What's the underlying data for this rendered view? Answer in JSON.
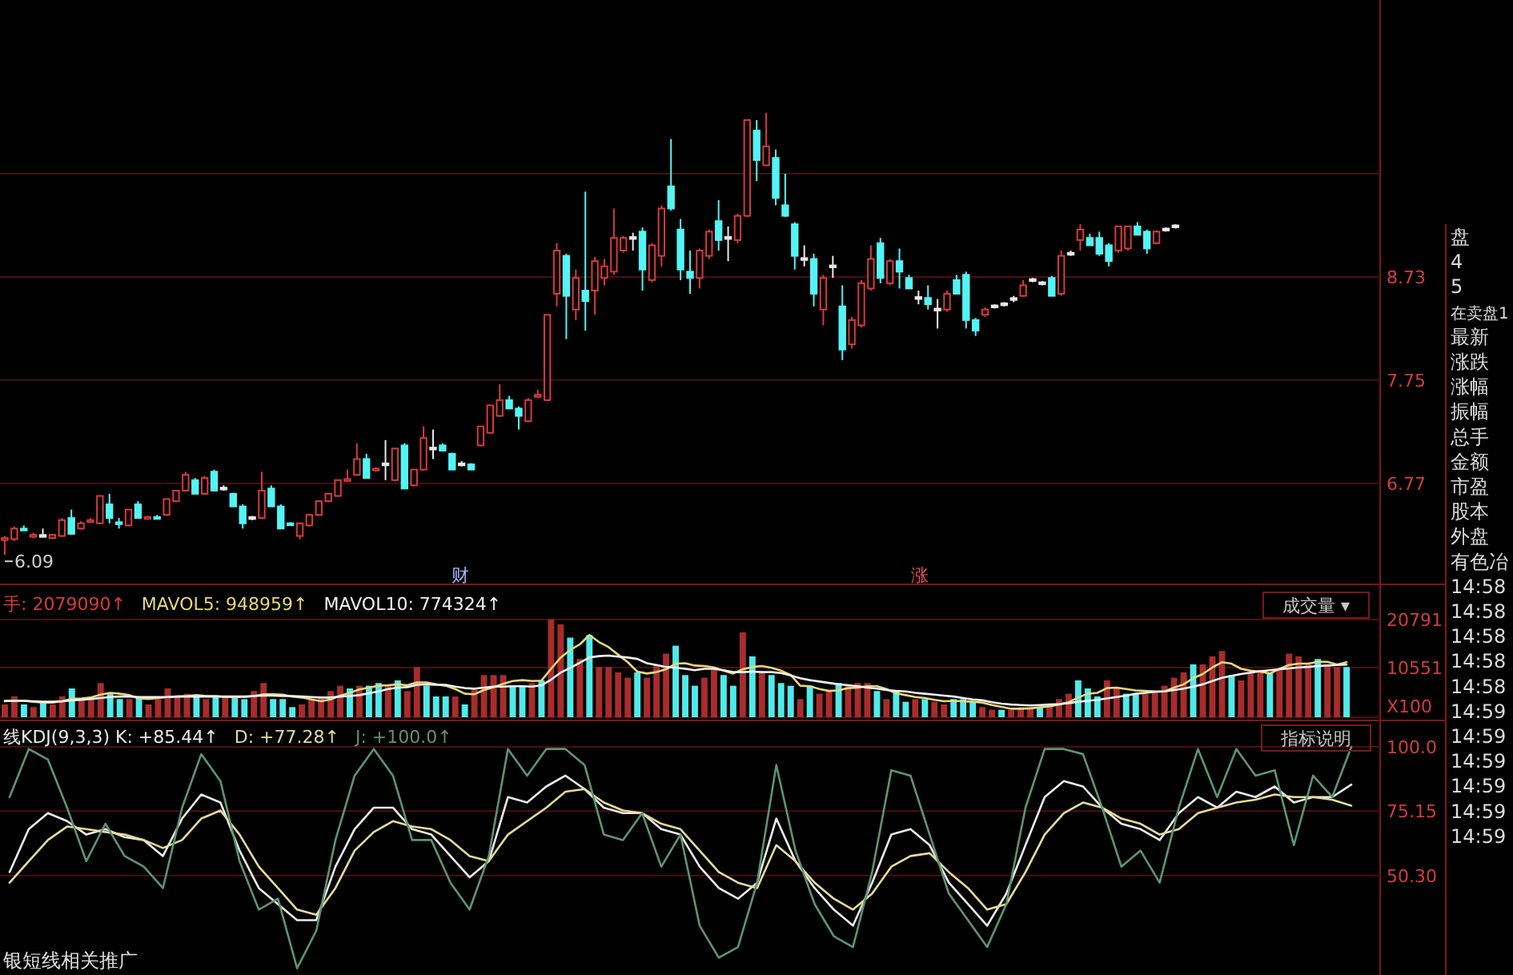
{
  "chart_data": [
    {
      "type": "candlestick",
      "categories": [
        null,
        null,
        null,
        null,
        null,
        null,
        null,
        null,
        null,
        null,
        null,
        null,
        null,
        null,
        null,
        null,
        null,
        null,
        null,
        null,
        null,
        null,
        null,
        null,
        null,
        null,
        null,
        null,
        null,
        null,
        null,
        null,
        null,
        null,
        null,
        null,
        null,
        null,
        null,
        null,
        null,
        null,
        null,
        null,
        null,
        null,
        null,
        null,
        null,
        null,
        null,
        null,
        null,
        null,
        null,
        null,
        null,
        null,
        null,
        null,
        null,
        null,
        null,
        null,
        null,
        null,
        null,
        null,
        null,
        null,
        null,
        null,
        null,
        null,
        null,
        null,
        null,
        null,
        null,
        null,
        null,
        null,
        null,
        null,
        null,
        null,
        null,
        null,
        null,
        null,
        null,
        null,
        null,
        null,
        null,
        null,
        null,
        null,
        null,
        null,
        null,
        null,
        null,
        null,
        null,
        null,
        null,
        null,
        null,
        null,
        null,
        null,
        null,
        null,
        null,
        null,
        null,
        null,
        null,
        null,
        null,
        null,
        null,
        null,
        null,
        null,
        null,
        null,
        null,
        null,
        null,
        null,
        null,
        null,
        null,
        null,
        null,
        null,
        null,
        null,
        null,
        null,
        null,
        null,
        null
      ],
      "ohlc": [
        [
          6.24,
          6.27,
          6.09,
          6.25
        ],
        [
          6.24,
          6.36,
          6.22,
          6.34
        ],
        [
          6.34,
          6.37,
          6.32,
          6.33
        ],
        [
          6.27,
          6.3,
          6.25,
          6.28
        ],
        [
          6.27,
          6.34,
          6.26,
          6.27
        ],
        [
          6.25,
          6.29,
          6.24,
          6.28
        ],
        [
          6.27,
          6.44,
          6.26,
          6.42
        ],
        [
          6.44,
          6.52,
          6.28,
          6.29
        ],
        [
          6.34,
          6.41,
          6.33,
          6.39
        ],
        [
          6.41,
          6.44,
          6.4,
          6.42
        ],
        [
          6.39,
          6.65,
          6.38,
          6.65
        ],
        [
          6.57,
          6.67,
          6.39,
          6.44
        ],
        [
          6.4,
          6.44,
          6.34,
          6.39
        ],
        [
          6.37,
          6.52,
          6.36,
          6.52
        ],
        [
          6.57,
          6.6,
          6.44,
          6.44
        ],
        [
          6.44,
          6.46,
          6.43,
          6.45
        ],
        [
          6.45,
          6.47,
          6.43,
          6.44
        ],
        [
          6.47,
          6.62,
          6.46,
          6.62
        ],
        [
          6.6,
          6.7,
          6.59,
          6.7
        ],
        [
          6.7,
          6.88,
          6.69,
          6.85
        ],
        [
          6.8,
          6.82,
          6.67,
          6.67
        ],
        [
          6.67,
          6.84,
          6.66,
          6.82
        ],
        [
          6.88,
          6.9,
          6.7,
          6.7
        ],
        [
          6.72,
          6.75,
          6.7,
          6.72
        ],
        [
          6.67,
          6.68,
          6.55,
          6.55
        ],
        [
          6.55,
          6.57,
          6.34,
          6.39
        ],
        [
          6.44,
          6.46,
          6.42,
          6.44
        ],
        [
          6.44,
          6.88,
          6.43,
          6.7
        ],
        [
          6.72,
          6.75,
          6.55,
          6.55
        ],
        [
          6.55,
          6.57,
          6.34,
          6.34
        ],
        [
          6.39,
          6.4,
          6.37,
          6.38
        ],
        [
          6.27,
          6.39,
          6.24,
          6.39
        ],
        [
          6.37,
          6.48,
          6.36,
          6.47
        ],
        [
          6.47,
          6.6,
          6.46,
          6.6
        ],
        [
          6.6,
          6.67,
          6.59,
          6.67
        ],
        [
          6.65,
          6.8,
          6.64,
          6.8
        ],
        [
          6.8,
          6.9,
          6.79,
          6.81
        ],
        [
          6.85,
          7.15,
          6.84,
          7.0
        ],
        [
          7.0,
          7.05,
          6.82,
          6.82
        ],
        [
          6.9,
          6.92,
          6.88,
          6.91
        ],
        [
          6.95,
          7.18,
          6.8,
          6.95
        ],
        [
          6.8,
          7.1,
          6.79,
          7.1
        ],
        [
          7.13,
          7.15,
          6.72,
          6.72
        ],
        [
          6.75,
          6.9,
          6.74,
          6.9
        ],
        [
          6.9,
          7.31,
          6.89,
          7.2
        ],
        [
          7.1,
          7.28,
          7.0,
          7.1
        ],
        [
          7.13,
          7.15,
          7.08,
          7.08
        ],
        [
          7.05,
          7.06,
          6.9,
          6.9
        ],
        [
          6.95,
          6.98,
          6.93,
          6.95
        ],
        [
          6.95,
          6.96,
          6.9,
          6.9
        ],
        [
          7.13,
          7.31,
          7.12,
          7.31
        ],
        [
          7.25,
          7.51,
          7.24,
          7.51
        ],
        [
          7.41,
          7.71,
          7.4,
          7.56
        ],
        [
          7.56,
          7.6,
          7.48,
          7.48
        ],
        [
          7.48,
          7.5,
          7.28,
          7.41
        ],
        [
          7.36,
          7.58,
          7.35,
          7.56
        ],
        [
          7.6,
          7.66,
          7.58,
          7.61
        ],
        [
          7.56,
          8.37,
          7.55,
          8.37
        ],
        [
          8.57,
          9.05,
          8.45,
          8.98
        ],
        [
          8.93,
          8.95,
          8.14,
          8.55
        ],
        [
          8.42,
          8.8,
          8.32,
          8.72
        ],
        [
          8.6,
          9.54,
          8.22,
          8.5
        ],
        [
          8.6,
          8.92,
          8.37,
          8.88
        ],
        [
          8.72,
          8.9,
          8.65,
          8.83
        ],
        [
          8.78,
          9.38,
          8.75,
          9.1
        ],
        [
          8.98,
          9.12,
          8.96,
          9.1
        ],
        [
          9.1,
          9.15,
          8.98,
          9.1
        ],
        [
          9.16,
          9.2,
          8.6,
          8.8
        ],
        [
          8.7,
          9.05,
          8.68,
          9.03
        ],
        [
          8.93,
          9.41,
          8.83,
          9.38
        ],
        [
          9.59,
          10.04,
          9.36,
          9.38
        ],
        [
          9.18,
          9.28,
          8.7,
          8.8
        ],
        [
          8.78,
          8.98,
          8.57,
          8.72
        ],
        [
          8.72,
          9.0,
          8.62,
          8.98
        ],
        [
          8.93,
          9.18,
          8.9,
          9.16
        ],
        [
          9.26,
          9.46,
          8.98,
          9.08
        ],
        [
          9.1,
          9.21,
          8.88,
          9.1
        ],
        [
          9.08,
          9.33,
          9.05,
          9.31
        ],
        [
          9.31,
          10.22,
          9.3,
          10.22
        ],
        [
          10.12,
          10.22,
          9.64,
          9.84
        ],
        [
          9.79,
          10.29,
          9.78,
          9.97
        ],
        [
          9.86,
          9.94,
          9.41,
          9.48
        ],
        [
          9.41,
          9.71,
          9.3,
          9.31
        ],
        [
          9.23,
          9.25,
          8.8,
          8.93
        ],
        [
          8.9,
          9.03,
          8.83,
          8.9
        ],
        [
          8.9,
          8.95,
          8.45,
          8.57
        ],
        [
          8.42,
          8.75,
          8.27,
          8.72
        ],
        [
          8.83,
          8.93,
          8.72,
          8.83
        ],
        [
          8.45,
          8.65,
          7.94,
          8.04
        ],
        [
          8.09,
          8.35,
          8.05,
          8.32
        ],
        [
          8.27,
          8.7,
          8.25,
          8.67
        ],
        [
          8.62,
          9.03,
          8.6,
          8.9
        ],
        [
          9.05,
          9.1,
          8.67,
          8.72
        ],
        [
          8.67,
          8.9,
          8.65,
          8.88
        ],
        [
          8.88,
          9.0,
          8.62,
          8.78
        ],
        [
          8.72,
          8.75,
          8.62,
          8.62
        ],
        [
          8.53,
          8.6,
          8.47,
          8.53
        ],
        [
          8.53,
          8.65,
          8.42,
          8.47
        ],
        [
          8.42,
          8.52,
          8.24,
          8.42
        ],
        [
          8.42,
          8.6,
          8.4,
          8.57
        ],
        [
          8.7,
          8.75,
          8.57,
          8.57
        ],
        [
          8.75,
          8.78,
          8.24,
          8.32
        ],
        [
          8.32,
          8.34,
          8.17,
          8.22
        ],
        [
          8.37,
          8.44,
          8.35,
          8.42
        ],
        [
          8.45,
          8.47,
          8.43,
          8.45
        ],
        [
          8.47,
          8.49,
          8.45,
          8.47
        ],
        [
          8.52,
          8.55,
          8.49,
          8.52
        ],
        [
          8.55,
          8.7,
          8.54,
          8.65
        ],
        [
          8.7,
          8.72,
          8.68,
          8.7
        ],
        [
          8.67,
          8.69,
          8.65,
          8.67
        ],
        [
          8.72,
          8.74,
          8.55,
          8.55
        ],
        [
          8.57,
          8.98,
          8.55,
          8.93
        ],
        [
          8.95,
          8.98,
          8.93,
          8.95
        ],
        [
          9.08,
          9.23,
          8.98,
          9.18
        ],
        [
          9.1,
          9.14,
          9.03,
          9.03
        ],
        [
          9.1,
          9.16,
          8.93,
          8.95
        ],
        [
          9.03,
          9.05,
          8.83,
          8.88
        ],
        [
          8.98,
          9.21,
          8.96,
          9.21
        ],
        [
          9.0,
          9.21,
          8.98,
          9.21
        ],
        [
          9.21,
          9.25,
          9.13,
          9.13
        ],
        [
          9.16,
          9.18,
          8.95,
          9.0
        ],
        [
          9.05,
          9.17,
          9.04,
          9.16
        ],
        [
          9.18,
          9.2,
          9.16,
          9.18
        ],
        [
          9.21,
          9.23,
          9.19,
          9.21
        ],
        null,
        null,
        null,
        null,
        null,
        null,
        null,
        null,
        null,
        null,
        null,
        null,
        null,
        null,
        null,
        null,
        null,
        null,
        null,
        null,
        null
      ],
      "colors": [
        "#d83a3a",
        "#d83a3a",
        "#54f4f4",
        "#d83a3a",
        "#e8e8e8",
        "#d83a3a",
        "#d83a3a",
        "#54f4f4",
        "#d83a3a",
        "#d83a3a",
        "#d83a3a",
        "#54f4f4",
        "#54f4f4",
        "#d83a3a",
        "#54f4f4",
        "#d83a3a",
        "#54f4f4",
        "#d83a3a",
        "#d83a3a",
        "#d83a3a",
        "#54f4f4",
        "#d83a3a",
        "#54f4f4",
        "#e8e8e8",
        "#54f4f4",
        "#54f4f4",
        "#e8e8e8",
        "#d83a3a",
        "#54f4f4",
        "#54f4f4",
        "#54f4f4",
        "#d83a3a",
        "#d83a3a",
        "#d83a3a",
        "#d83a3a",
        "#d83a3a",
        "#d83a3a",
        "#d83a3a",
        "#54f4f4",
        "#d83a3a",
        "#e8e8e8",
        "#d83a3a",
        "#54f4f4",
        "#d83a3a",
        "#d83a3a",
        "#e8e8e8",
        "#54f4f4",
        "#54f4f4",
        "#e8e8e8",
        "#54f4f4",
        "#d83a3a",
        "#d83a3a",
        "#d83a3a",
        "#54f4f4",
        "#54f4f4",
        "#d83a3a",
        "#d83a3a",
        "#d83a3a",
        "#d83a3a",
        "#54f4f4",
        "#d83a3a",
        "#54f4f4",
        "#d83a3a",
        "#d83a3a",
        "#d83a3a",
        "#d83a3a",
        "#e8e8e8",
        "#54f4f4",
        "#d83a3a",
        "#d83a3a",
        "#54f4f4",
        "#54f4f4",
        "#54f4f4",
        "#d83a3a",
        "#d83a3a",
        "#54f4f4",
        "#e8e8e8",
        "#d83a3a",
        "#d83a3a",
        "#54f4f4",
        "#d83a3a",
        "#54f4f4",
        "#54f4f4",
        "#54f4f4",
        "#e8e8e8",
        "#54f4f4",
        "#d83a3a",
        "#e8e8e8",
        "#54f4f4",
        "#d83a3a",
        "#d83a3a",
        "#d83a3a",
        "#54f4f4",
        "#d83a3a",
        "#54f4f4",
        "#54f4f4",
        "#e8e8e8",
        "#54f4f4",
        "#e8e8e8",
        "#d83a3a",
        "#54f4f4",
        "#54f4f4",
        "#54f4f4",
        "#d83a3a",
        "#e8e8e8",
        "#e8e8e8",
        "#e8e8e8",
        "#d83a3a",
        "#e8e8e8",
        "#e8e8e8",
        "#54f4f4",
        "#d83a3a",
        "#e8e8e8",
        "#d83a3a",
        "#54f4f4",
        "#54f4f4",
        "#54f4f4",
        "#d83a3a",
        "#d83a3a",
        "#54f4f4",
        "#54f4f4",
        "#d83a3a",
        "#e8e8e8",
        "#e8e8e8",
        null,
        null,
        null,
        null,
        null,
        null,
        null,
        null,
        null,
        null,
        null,
        null,
        null,
        null,
        null,
        null,
        null,
        null,
        null,
        null,
        null
      ],
      "ylim": [
        5.81,
        11.36
      ],
      "yticks": [
        6.77,
        7.75,
        8.73,
        {
          "value": 9.71,
          "label": null
        }
      ],
      "grid": "y",
      "annotations": [
        "6.09",
        "财",
        "涨"
      ]
    },
    {
      "type": "bar",
      "categories": [
        null,
        null,
        null,
        null,
        null,
        null,
        null,
        null,
        null,
        null,
        null,
        null,
        null,
        null,
        null,
        null,
        null,
        null,
        null,
        null,
        null,
        null,
        null,
        null,
        null,
        null,
        null,
        null,
        null,
        null,
        null,
        null,
        null,
        null,
        null,
        null,
        null,
        null,
        null,
        null,
        null,
        null,
        null,
        null,
        null,
        null,
        null,
        null,
        null,
        null,
        null,
        null,
        null,
        null,
        null,
        null,
        null,
        null,
        null,
        null,
        null,
        null,
        null,
        null,
        null,
        null,
        null,
        null,
        null,
        null,
        null,
        null,
        null,
        null,
        null,
        null,
        null,
        null,
        null,
        null,
        null,
        null,
        null,
        null,
        null,
        null,
        null,
        null,
        null,
        null,
        null,
        null,
        null,
        null,
        null,
        null,
        null,
        null,
        null,
        null,
        null,
        null,
        null,
        null,
        null,
        null,
        null,
        null,
        null,
        null,
        null,
        null,
        null,
        null,
        null,
        null,
        null,
        null,
        null,
        null,
        null,
        null,
        null,
        null,
        null,
        null,
        null,
        null,
        null,
        null,
        null,
        null,
        null,
        null,
        null,
        null,
        null,
        null,
        null,
        null,
        null,
        null,
        null,
        null
      ],
      "series": [
        {
          "type": "bar",
          "color": "#d83a3a",
          "values": [
            2730,
            4430,
            2730,
            2160,
            3290,
            2730,
            4430,
            6130,
            3860,
            4430,
            7270,
            5000,
            3860,
            3860,
            4430,
            2730,
            3860,
            6130,
            4430,
            5000,
            4430,
            3860,
            4430,
            4430,
            4430,
            3860,
            5570,
            7270,
            3860,
            3860,
            2160,
            2730,
            3860,
            4430,
            5570,
            6700,
            6130,
            6700,
            6700,
            7270,
            6700,
            7840,
            5570,
            10680,
            6700,
            4430,
            4430,
            4430,
            2730,
            6130,
            8970,
            8970,
            8970,
            6700,
            6700,
            7270,
            7840,
            20790,
            19770,
            16930,
            12380,
            17490,
            10680,
            10680,
            9540,
            8410,
            9540,
            8410,
            11250,
            13520,
            15220,
            8970,
            6700,
            8410,
            10110,
            8970,
            6700,
            18060,
            12950,
            9540,
            8970,
            7270,
            6700,
            3860,
            6700,
            5000,
            5570,
            7270,
            6700,
            7270,
            7270,
            5570,
            3860,
            5570,
            3290,
            3860,
            3860,
            3290,
            2730,
            3860,
            3860,
            3290,
            2160,
            1590,
            1590,
            1590,
            2160,
            2160,
            2160,
            2730,
            3860,
            5000,
            7840,
            6130,
            4430,
            7840,
            6130,
            5000,
            5000,
            5000,
            5570,
            6700,
            8410,
            9540,
            11250,
            11250,
            12950,
            14090,
            8970,
            7840,
            9540,
            10110,
            9540,
            10110,
            13520,
            12950,
            11250,
            12380,
            11250,
            10680,
            10680,
            null,
            null,
            null
          ],
          "colors": [
            "#a82c2c",
            "#a82c2c",
            "#50eaea",
            "#a82c2c",
            "#50eaea",
            "#a82c2c",
            "#a82c2c",
            "#50eaea",
            "#a82c2c",
            "#a82c2c",
            "#a82c2c",
            "#50eaea",
            "#50eaea",
            "#a82c2c",
            "#50eaea",
            "#a82c2c",
            "#a82c2c",
            "#a82c2c",
            "#a82c2c",
            "#a82c2c",
            "#50eaea",
            "#a82c2c",
            "#50eaea",
            "#a82c2c",
            "#50eaea",
            "#50eaea",
            "#a82c2c",
            "#a82c2c",
            "#50eaea",
            "#50eaea",
            "#50eaea",
            "#a82c2c",
            "#a82c2c",
            "#a82c2c",
            "#a82c2c",
            "#a82c2c",
            "#50eaea",
            "#a82c2c",
            "#50eaea",
            "#50eaea",
            "#a82c2c",
            "#50eaea",
            "#a82c2c",
            "#a82c2c",
            "#50eaea",
            "#50eaea",
            "#50eaea",
            "#a82c2c",
            "#50eaea",
            "#a82c2c",
            "#a82c2c",
            "#a82c2c",
            "#a82c2c",
            "#50eaea",
            "#50eaea",
            "#a82c2c",
            "#50eaea",
            "#a82c2c",
            "#a82c2c",
            "#50eaea",
            "#a82c2c",
            "#50eaea",
            "#a82c2c",
            "#a82c2c",
            "#a82c2c",
            "#a82c2c",
            "#50eaea",
            "#a82c2c",
            "#a82c2c",
            "#a82c2c",
            "#50eaea",
            "#50eaea",
            "#50eaea",
            "#a82c2c",
            "#a82c2c",
            "#50eaea",
            "#50eaea",
            "#a82c2c",
            "#50eaea",
            "#a82c2c",
            "#50eaea",
            "#50eaea",
            "#50eaea",
            "#a82c2c",
            "#50eaea",
            "#a82c2c",
            "#a82c2c",
            "#50eaea",
            "#a82c2c",
            "#a82c2c",
            "#a82c2c",
            "#50eaea",
            "#a82c2c",
            "#50eaea",
            "#50eaea",
            "#a82c2c",
            "#50eaea",
            "#a82c2c",
            "#a82c2c",
            "#50eaea",
            "#50eaea",
            "#50eaea",
            "#a82c2c",
            "#a82c2c",
            "#50eaea",
            "#a82c2c",
            "#a82c2c",
            "#a82c2c",
            "#50eaea",
            "#a82c2c",
            "#a82c2c",
            "#a82c2c",
            "#50eaea",
            "#50eaea",
            "#50eaea",
            "#a82c2c",
            "#a82c2c",
            "#50eaea",
            "#50eaea",
            "#a82c2c",
            "#a82c2c",
            "#a82c2c",
            "#a82c2c",
            "#a82c2c",
            "#50eaea",
            "#a82c2c",
            "#a82c2c",
            "#a82c2c",
            "#50eaea",
            "#a82c2c",
            "#a82c2c",
            "#a82c2c",
            "#50eaea",
            "#a82c2c",
            "#a82c2c",
            "#a82c2c",
            "#a82c2c",
            "#50eaea",
            "#a82c2c",
            "#a82c2c",
            "#50eaea",
            "#a82c2c",
            "#a82c2c",
            "#a82c2c"
          ]
        },
        {
          "type": "line",
          "color": "#e6d87a",
          "values": [
            3400,
            3500,
            3500,
            3300,
            3100,
            3100,
            3400,
            3900,
            4000,
            4200,
            4800,
            5200,
            5000,
            4700,
            4000,
            3900,
            4100,
            4300,
            4400,
            4500,
            4700,
            4500,
            4500,
            4300,
            4300,
            4300,
            4500,
            4900,
            4900,
            4800,
            4400,
            4200,
            3800,
            3400,
            3800,
            4600,
            5200,
            5900,
            6300,
            6700,
            6800,
            7000,
            6800,
            7400,
            7400,
            7000,
            6700,
            6000,
            5000,
            4900,
            5800,
            6400,
            7100,
            7700,
            7900,
            7700,
            7800,
            10300,
            12700,
            14300,
            15500,
            17500,
            16000,
            14900,
            13300,
            11700,
            9700,
            9300,
            9600,
            10200,
            11400,
            11500,
            11000,
            10900,
            10600,
            9900,
            9300,
            10200,
            10700,
            10900,
            10500,
            9900,
            9000,
            6700,
            6600,
            6000,
            5600,
            5700,
            6200,
            6300,
            6600,
            6600,
            6000,
            5100,
            4700,
            4300,
            4100,
            3700,
            3400,
            3500,
            3400,
            3300,
            3100,
            2600,
            2200,
            1800,
            1800,
            1900,
            2100,
            2300,
            2700,
            3200,
            4200,
            5000,
            5200,
            6200,
            6300,
            6000,
            5700,
            5600,
            5500,
            5500,
            6300,
            7000,
            8300,
            9200,
            10600,
            11700,
            11400,
            10300,
            9900,
            9700,
            9300,
            10300,
            11100,
            11400,
            11400,
            11800,
            11800,
            11200,
            11700,
            null,
            null,
            null
          ]
        },
        {
          "type": "line",
          "color": "#f2f2f2",
          "values": [
            3500,
            3500,
            3500,
            3400,
            3300,
            3300,
            3400,
            3600,
            3700,
            3900,
            4100,
            4300,
            4400,
            4400,
            4300,
            4300,
            4300,
            4300,
            4400,
            4400,
            4400,
            4400,
            4400,
            4400,
            4400,
            4400,
            4500,
            4600,
            4600,
            4500,
            4500,
            4400,
            4300,
            4200,
            4200,
            4400,
            4500,
            4700,
            5100,
            5500,
            6000,
            6300,
            6400,
            6900,
            7000,
            6900,
            6900,
            6500,
            6200,
            6100,
            6300,
            6500,
            6500,
            6600,
            6600,
            6500,
            6800,
            8000,
            9500,
            10500,
            11600,
            12700,
            13000,
            13100,
            12900,
            12700,
            12400,
            11500,
            11100,
            10700,
            10500,
            10300,
            10000,
            10300,
            10300,
            10000,
            9600,
            9600,
            9700,
            9600,
            9600,
            9400,
            8900,
            8300,
            7900,
            7600,
            7300,
            7000,
            6800,
            6600,
            6300,
            6100,
            5800,
            5600,
            5500,
            5200,
            5000,
            4800,
            4600,
            4400,
            4100,
            3800,
            3600,
            3200,
            2900,
            2700,
            2600,
            2500,
            2600,
            2700,
            2800,
            3000,
            3300,
            3500,
            3700,
            4000,
            4300,
            4600,
            5000,
            5200,
            5400,
            5500,
            5800,
            6100,
            6500,
            7000,
            7700,
            8400,
            8800,
            9200,
            9500,
            9800,
            10000,
            10200,
            10400,
            10600,
            10700,
            10900,
            11000,
            11100,
            11200,
            null,
            null,
            null
          ]
        }
      ],
      "ylim": [
        0,
        26900
      ],
      "yticks": [
        {
          "value": 0,
          "label": "X100"
        },
        10551,
        20791
      ],
      "grid": "y",
      "annotations": [
        "手: 2079090↑",
        "MAVOL5: 948959↑",
        "MAVOL10: 774324↑",
        "成交量 ▾"
      ]
    },
    {
      "type": "line",
      "categories": [
        null,
        null,
        null,
        null,
        null,
        null,
        null,
        null,
        null,
        null,
        null,
        null,
        null,
        null,
        null,
        null,
        null,
        null,
        null,
        null,
        null,
        null,
        null,
        null,
        null,
        null,
        null,
        null,
        null,
        null,
        null,
        null,
        null,
        null,
        null,
        null,
        null,
        null,
        null,
        null,
        null,
        null,
        null,
        null,
        null,
        null,
        null,
        null,
        null,
        null,
        null,
        null,
        null,
        null,
        null,
        null,
        null,
        null,
        null,
        null,
        null,
        null,
        null,
        null,
        null,
        null,
        null,
        null,
        null,
        null,
        null,
        null
      ],
      "series": [
        {
          "color": "#ececec",
          "values": [
            51.6,
            68.2,
            74.4,
            71.3,
            66.1,
            68.2,
            65.1,
            64.0,
            57.8,
            72.3,
            81.6,
            78.5,
            59.9,
            45.4,
            39.2,
            33.0,
            33.0,
            53.7,
            68.2,
            76.5,
            76.5,
            68.2,
            66.1,
            57.8,
            49.6,
            55.8,
            80.6,
            78.5,
            84.7,
            88.9,
            83.7,
            76.5,
            74.4,
            74.4,
            68.2,
            66.1,
            53.7,
            45.4,
            41.3,
            47.5,
            72.3,
            55.8,
            45.4,
            37.1,
            30.9,
            47.5,
            66.1,
            68.2,
            62.0,
            47.5,
            39.2,
            30.9,
            43.3,
            62.0,
            80.6,
            86.8,
            84.7,
            76.5,
            70.3,
            68.2,
            64.0,
            74.4,
            80.6,
            76.5,
            82.7,
            80.6,
            84.7,
            78.5,
            80.6,
            80.6,
            85.44,
            null
          ]
        },
        {
          "color": "#e6dc9a",
          "values": [
            47.5,
            55.8,
            64.0,
            69.2,
            68.2,
            67.1,
            66.1,
            64.0,
            60.9,
            64.0,
            72.3,
            75.4,
            66.1,
            53.7,
            45.4,
            37.1,
            35.1,
            45.4,
            59.9,
            67.1,
            71.3,
            69.2,
            68.2,
            64.0,
            57.8,
            55.8,
            66.1,
            71.3,
            76.5,
            82.7,
            83.7,
            78.5,
            75.4,
            74.4,
            70.3,
            68.2,
            59.9,
            51.6,
            47.5,
            45.4,
            62.0,
            55.8,
            47.5,
            41.3,
            37.1,
            43.3,
            53.7,
            57.8,
            58.9,
            51.6,
            45.4,
            37.1,
            39.2,
            51.6,
            66.1,
            74.4,
            78.5,
            76.5,
            72.3,
            70.3,
            66.1,
            68.2,
            74.4,
            76.5,
            78.5,
            79.6,
            81.6,
            80.6,
            80.6,
            79.6,
            77.28,
            null
          ]
        },
        {
          "color": "#5e9474",
          "values": [
            80.6,
            99.2,
            95.1,
            76.5,
            55.8,
            70.3,
            57.8,
            53.7,
            45.4,
            76.5,
            97.2,
            86.8,
            55.8,
            37.1,
            41.3,
            14.4,
            28.9,
            64.0,
            88.9,
            99.2,
            88.9,
            64.0,
            64.0,
            47.5,
            37.1,
            57.8,
            99.2,
            88.9,
            99.2,
            99.2,
            93.0,
            66.1,
            64.0,
            74.4,
            53.7,
            66.1,
            30.9,
            18.5,
            22.6,
            47.5,
            93.0,
            59.9,
            39.2,
            26.8,
            22.6,
            51.6,
            91.0,
            88.9,
            66.1,
            43.3,
            33.0,
            22.6,
            39.2,
            76.5,
            99.2,
            99.2,
            97.2,
            76.5,
            53.7,
            59.9,
            47.5,
            76.5,
            99.2,
            80.6,
            99.2,
            88.9,
            91.0,
            62.0,
            88.9,
            80.6,
            100.0,
            null
          ]
        }
      ],
      "ylim": [
        11.8,
        109
      ],
      "yticks": [
        {
          "value": 100,
          "label": "100.0"
        },
        75.15,
        {
          "value": 50.3,
          "label": "50.30"
        }
      ],
      "grid": "y",
      "annotations": [
        "线KDJ(9,3,3) K: +85.44↑",
        "D: +77.28↑",
        "J: +100.0↑",
        "指标说明",
        "银短线相关推广"
      ]
    },
    {
      "type": "other",
      "annotations": [
        "盘",
        "4",
        "5",
        "在卖盘1",
        "最新",
        "涨跌",
        "涨幅",
        "振幅",
        "总手",
        "金额",
        "市盈",
        "股本",
        "外盘",
        "有色冶",
        "14:58",
        "14:58",
        "14:58",
        "14:58",
        "14:58",
        "14:59",
        "14:59",
        "14:59",
        "14:59",
        "14:59",
        "14:59"
      ]
    }
  ]
}
